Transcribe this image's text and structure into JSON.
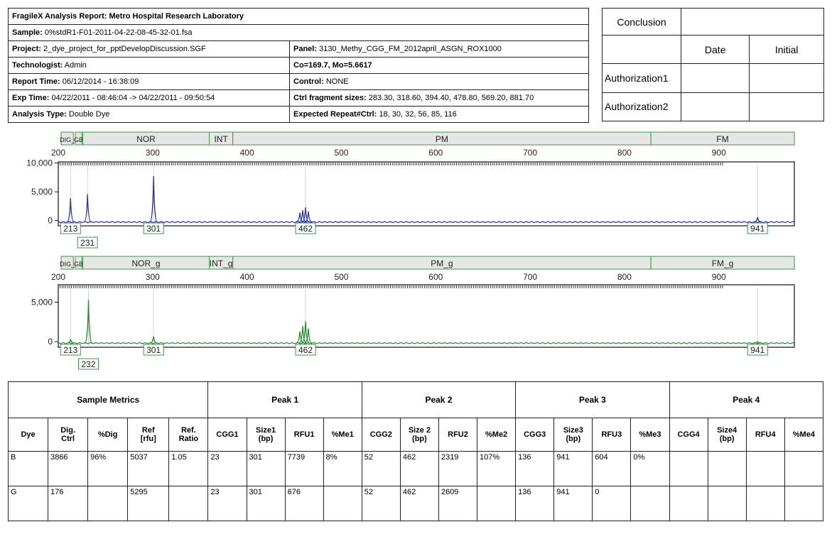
{
  "header": {
    "title": "FragileX Analysis Report:  Metro Hospital Research Laboratory",
    "sample_label": "Sample:",
    "sample": "0%stdR1-F01-2011-04-22-08-45-32-01.fsa",
    "project_label": "Project:",
    "project": "2_dye_project_for_pptDevelopDiscussion.SGF",
    "panel_label": "Panel:",
    "panel": "3130_Methy_CGG_FM_2012april_ASGN_ROX1000",
    "technologist_label": "Technologist:",
    "technologist": "Admin",
    "co_mo": "Co=169.7, Mo=5.6617",
    "report_time_label": "Report Time:",
    "report_time": "06/12/2014 - 16:38:09",
    "control_label": "Control:",
    "control": "NONE",
    "exp_time_label": "Exp Time:",
    "exp_time": "04/22/2011 - 08:46:04 -> 04/22/2011 - 09:50:54",
    "ctrl_frag_label": "Ctrl fragment sizes:",
    "ctrl_frag": "283.30, 318.60, 394.40, 478.80, 569.20, 881.70",
    "analysis_type_label": "Analysis Type:",
    "analysis_type": "Double Dye",
    "expected_repeat_label": "Expected Repeat#Ctrl:",
    "expected_repeat": "18, 30, 32, 56, 85, 116"
  },
  "conclusion": {
    "title": "Conclusion",
    "date": "Date",
    "initial": "Initial",
    "auth1": "Authorization1",
    "auth2": "Authorization2"
  },
  "chart_data": [
    {
      "type": "line",
      "color": "#2a2f9a",
      "bins": [
        {
          "label": "DIG_",
          "start": 203,
          "end": 216
        },
        {
          "label": "GB",
          "start": 218,
          "end": 225
        },
        {
          "label": "NOR",
          "start": 226,
          "end": 360
        },
        {
          "label": "INT",
          "start": 360,
          "end": 385
        },
        {
          "label": "PM",
          "start": 385,
          "end": 828
        },
        {
          "label": "FM",
          "start": 828,
          "end": 980
        }
      ],
      "xticks": [
        "200",
        "300",
        "400",
        "500",
        "600",
        "700",
        "800",
        "900"
      ],
      "xlim": [
        200,
        980
      ],
      "yticks": [
        "10,000",
        "5,000",
        "0"
      ],
      "ytick_values": [
        10000,
        5000,
        0
      ],
      "ylim": [
        -900,
        10200
      ],
      "peaks": [
        {
          "x": 213,
          "y": 3900
        },
        {
          "x": 231,
          "y": 4600
        },
        {
          "x": 301,
          "y": 7739
        },
        {
          "x": 456,
          "y": 1400
        },
        {
          "x": 459,
          "y": 1800
        },
        {
          "x": 462,
          "y": 2319
        },
        {
          "x": 465,
          "y": 1600
        },
        {
          "x": 941,
          "y": 604
        }
      ],
      "peak_labels": [
        {
          "x": 213,
          "text": "213",
          "row": 0
        },
        {
          "x": 231,
          "text": "231",
          "row": 1
        },
        {
          "x": 301,
          "text": "301",
          "row": 0
        },
        {
          "x": 462,
          "text": "462",
          "row": 0
        },
        {
          "x": 941,
          "text": "941",
          "row": 0
        }
      ]
    },
    {
      "type": "line",
      "color": "#1f8a2a",
      "bins": [
        {
          "label": "DIG_",
          "start": 203,
          "end": 216
        },
        {
          "label": "GB",
          "start": 218,
          "end": 225
        },
        {
          "label": "NOR_g",
          "start": 226,
          "end": 360
        },
        {
          "label": "INT_g",
          "start": 360,
          "end": 385
        },
        {
          "label": "PM_g",
          "start": 385,
          "end": 828
        },
        {
          "label": "FM_g",
          "start": 828,
          "end": 980
        }
      ],
      "xticks": [
        "200",
        "300",
        "400",
        "500",
        "600",
        "700",
        "800",
        "900"
      ],
      "xlim": [
        200,
        980
      ],
      "yticks": [
        "5,000",
        "0"
      ],
      "ytick_values": [
        5000,
        0
      ],
      "ylim": [
        -700,
        7200
      ],
      "peaks": [
        {
          "x": 213,
          "y": 300
        },
        {
          "x": 232,
          "y": 5295
        },
        {
          "x": 301,
          "y": 676
        },
        {
          "x": 456,
          "y": 1300
        },
        {
          "x": 459,
          "y": 2000
        },
        {
          "x": 462,
          "y": 2609
        },
        {
          "x": 465,
          "y": 1700
        },
        {
          "x": 941,
          "y": 0
        }
      ],
      "peak_labels": [
        {
          "x": 213,
          "text": "213",
          "row": 0
        },
        {
          "x": 232,
          "text": "232",
          "row": 1
        },
        {
          "x": 301,
          "text": "301",
          "row": 0
        },
        {
          "x": 462,
          "text": "462",
          "row": 0
        },
        {
          "x": 941,
          "text": "941",
          "row": 0
        }
      ]
    }
  ],
  "metrics": {
    "groups": [
      "Sample Metrics",
      "Peak 1",
      "Peak 2",
      "Peak 3",
      "Peak 4"
    ],
    "columns": [
      "Dye",
      "Dig.\nCtrl",
      "%Dig",
      "Ref\n[rfu]",
      "Ref.\nRatio",
      "CGG1",
      "Size1\n(bp)",
      "RFU1",
      "%Me1",
      "CGG2",
      "Size 2\n(bp)",
      "RFU2",
      "%Me2",
      "CGG3",
      "Size3\n(bp)",
      "RFU3",
      "%Me3",
      "CGG4",
      "Size4\n(bp)",
      "RFU4",
      "%Me4"
    ],
    "rows": [
      [
        "B",
        "3866",
        "96%",
        "5037",
        "1.05",
        "23",
        "301",
        "7739",
        "8%",
        "52",
        "462",
        "2319",
        "107%",
        "136",
        "941",
        "604",
        "0%",
        "",
        "",
        "",
        ""
      ],
      [
        "G",
        "176",
        "",
        "5295",
        "",
        "23",
        "301",
        "676",
        "",
        "52",
        "462",
        "2609",
        "",
        "136",
        "941",
        "0",
        "",
        "",
        "",
        "",
        ""
      ]
    ]
  }
}
